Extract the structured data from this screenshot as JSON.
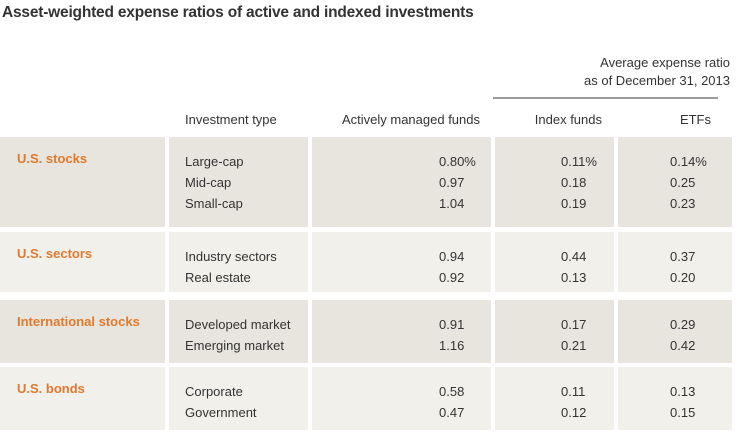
{
  "title": "Asset-weighted expense ratios of active and indexed investments",
  "super_header": {
    "line1": "Average expense ratio",
    "line2": "as of December 31, 2013"
  },
  "columns": {
    "investment_type": "Investment type",
    "active": "Actively managed funds",
    "index": "Index funds",
    "etfs": "ETFs"
  },
  "colors": {
    "category": "#e07a2e",
    "row_dark": "#e8e5de",
    "row_light": "#f1f0eb"
  },
  "groups": [
    {
      "category": "U.S. stocks",
      "types": [
        "Large-cap",
        "Mid-cap",
        "Small-cap"
      ],
      "active": [
        "0.80%",
        "0.97",
        "1.04"
      ],
      "index": [
        "0.11%",
        "0.18",
        "0.19"
      ],
      "etfs": [
        "0.14%",
        "0.25",
        "0.23"
      ]
    },
    {
      "category": "U.S. sectors",
      "types": [
        "Industry sectors",
        "Real estate"
      ],
      "active": [
        "0.94",
        "0.92"
      ],
      "index": [
        "0.44",
        "0.13"
      ],
      "etfs": [
        "0.37",
        "0.20"
      ]
    },
    {
      "category": "International stocks",
      "types": [
        "Developed market",
        "Emerging market"
      ],
      "active": [
        "0.91",
        "1.16"
      ],
      "index": [
        "0.17",
        "0.21"
      ],
      "etfs": [
        "0.29",
        "0.42"
      ]
    },
    {
      "category": "U.S. bonds",
      "types": [
        "Corporate",
        "Government"
      ],
      "active": [
        "0.58",
        "0.47"
      ],
      "index": [
        "0.11",
        "0.12"
      ],
      "etfs": [
        "0.13",
        "0.15"
      ]
    }
  ]
}
